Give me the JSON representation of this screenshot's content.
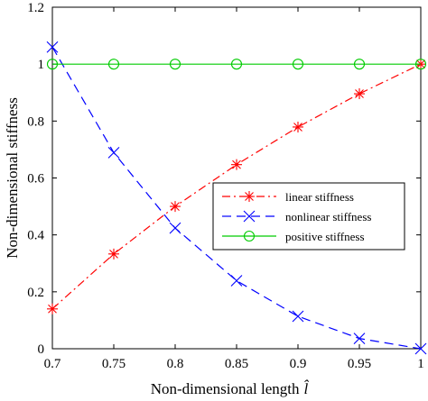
{
  "chart_data": {
    "type": "line",
    "xlabel": "Non-dimensional length",
    "xlabel_symbol": "l̂",
    "ylabel": "Non-dimensional stiffness",
    "xlim": [
      0.7,
      1.0
    ],
    "ylim": [
      0,
      1.2
    ],
    "xticks": [
      "0.7",
      "0.75",
      "0.8",
      "0.85",
      "0.9",
      "0.95",
      "1"
    ],
    "yticks": [
      "0",
      "0.2",
      "0.4",
      "0.6",
      "0.8",
      "1",
      "1.2"
    ],
    "grid": false,
    "legend_position": "right",
    "x": [
      0.7,
      0.75,
      0.8,
      0.85,
      0.9,
      0.95,
      1.0
    ],
    "series": [
      {
        "name": "linear stiffness",
        "color": "#ff0000",
        "marker": "asterisk",
        "line_style": "dash-dot",
        "values": [
          0.14,
          0.333,
          0.5,
          0.647,
          0.779,
          0.896,
          1.0
        ]
      },
      {
        "name": "nonlinear stiffness",
        "color": "#0000ff",
        "marker": "x",
        "line_style": "dashed",
        "values": [
          1.06,
          0.689,
          0.424,
          0.239,
          0.114,
          0.036,
          0.0
        ]
      },
      {
        "name": "positive stiffness",
        "color": "#00cc00",
        "marker": "circle",
        "line_style": "solid",
        "values": [
          1.0,
          1.0,
          1.0,
          1.0,
          1.0,
          1.0,
          1.0
        ]
      }
    ]
  }
}
